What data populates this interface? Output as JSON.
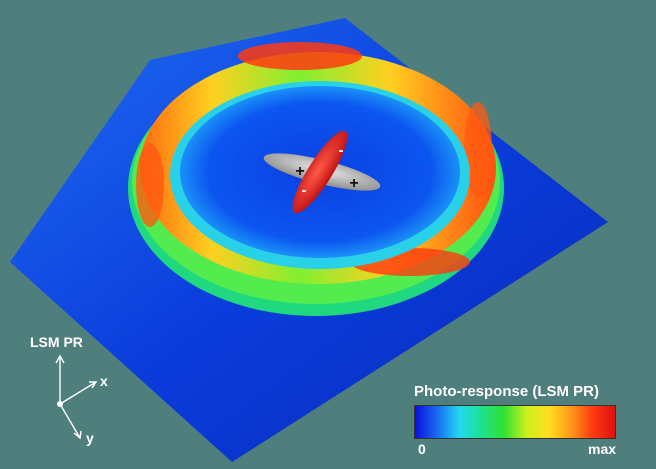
{
  "figure": {
    "axes": {
      "vertical_label": "LSM PR",
      "x_label": "x",
      "y_label": "y"
    },
    "dipole_markers": {
      "gray_lobe_signs": [
        "+",
        "+"
      ],
      "red_lobe_signs": [
        "-",
        "-"
      ]
    },
    "legend": {
      "title": "Photo-response (LSM PR)",
      "min_label": "0",
      "max_label": "max",
      "colormap": [
        "#0a10d8",
        "#1a6cf0",
        "#22d8f0",
        "#20e090",
        "#30e030",
        "#c8f020",
        "#ffe020",
        "#ff9a18",
        "#ff3a10",
        "#e01010"
      ]
    },
    "colors": {
      "background": "#4f7f7d",
      "base_surface": "#0b3ddc",
      "dipole_gray": "#b8b8b8",
      "dipole_red": "#e21a1a"
    }
  }
}
